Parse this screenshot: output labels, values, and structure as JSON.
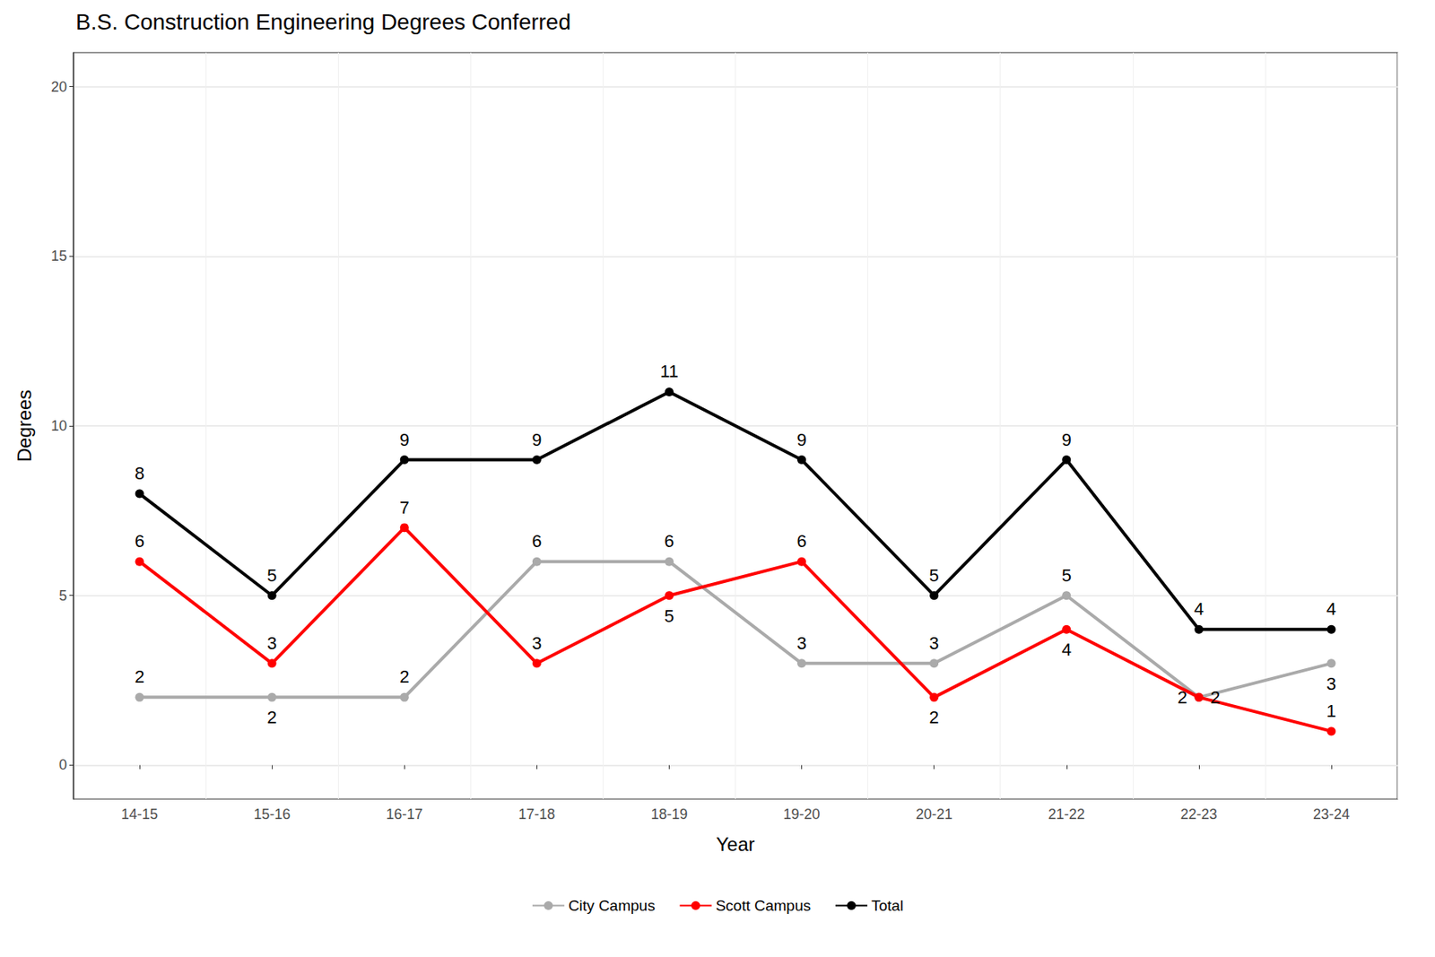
{
  "chart_data": {
    "type": "line",
    "title": "B.S. Construction Engineering Degrees Conferred",
    "xlabel": "Year",
    "ylabel": "Degrees",
    "categories": [
      "14-15",
      "15-16",
      "16-17",
      "17-18",
      "18-19",
      "19-20",
      "20-21",
      "21-22",
      "22-23",
      "23-24"
    ],
    "series": [
      {
        "name": "City Campus",
        "color": "#aaaaaa",
        "values": [
          2,
          2,
          2,
          6,
          6,
          3,
          3,
          5,
          2,
          3
        ]
      },
      {
        "name": "Scott Campus",
        "color": "#ff0000",
        "values": [
          6,
          3,
          7,
          3,
          5,
          6,
          2,
          4,
          2,
          1
        ]
      },
      {
        "name": "Total",
        "color": "#000000",
        "values": [
          8,
          5,
          9,
          9,
          11,
          9,
          5,
          9,
          4,
          4
        ]
      }
    ],
    "ylim": [
      -1,
      21
    ],
    "yticks": [
      0,
      5,
      10,
      15,
      20
    ],
    "grid": true,
    "legend": "bottom",
    "data_labels": true,
    "marker": "circle"
  }
}
